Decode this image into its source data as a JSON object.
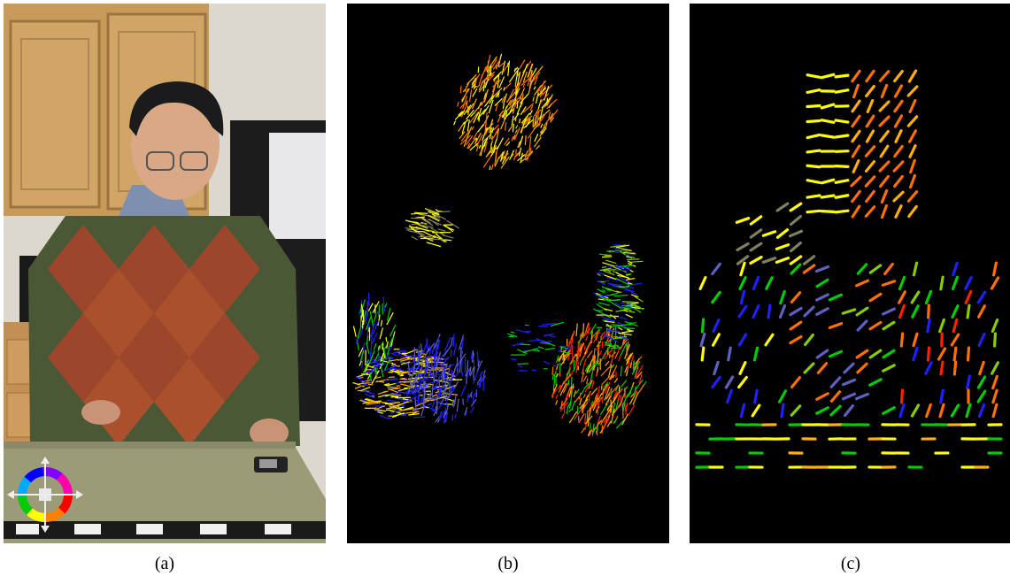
{
  "captions": {
    "a": "(a)",
    "b": "(b)",
    "c": "(c)"
  },
  "panels": {
    "a": {
      "content": "photo",
      "subject": "person-at-table"
    },
    "b": {
      "content": "dense-flow-field"
    },
    "c": {
      "content": "sparse-flow-field"
    }
  },
  "colors": {
    "wheel": [
      "#ff0000",
      "#ff8000",
      "#ffff00",
      "#00cc00",
      "#00aaff",
      "#0000ff",
      "#8000ff",
      "#ff00aa"
    ],
    "flow": [
      "#ffff00",
      "#ffb000",
      "#ff7000",
      "#ff2000",
      "#00cc00",
      "#88cc00",
      "#2020ff",
      "#6060c0",
      "#808060"
    ]
  },
  "icons": {
    "wheel": "color-wheel-icon"
  }
}
